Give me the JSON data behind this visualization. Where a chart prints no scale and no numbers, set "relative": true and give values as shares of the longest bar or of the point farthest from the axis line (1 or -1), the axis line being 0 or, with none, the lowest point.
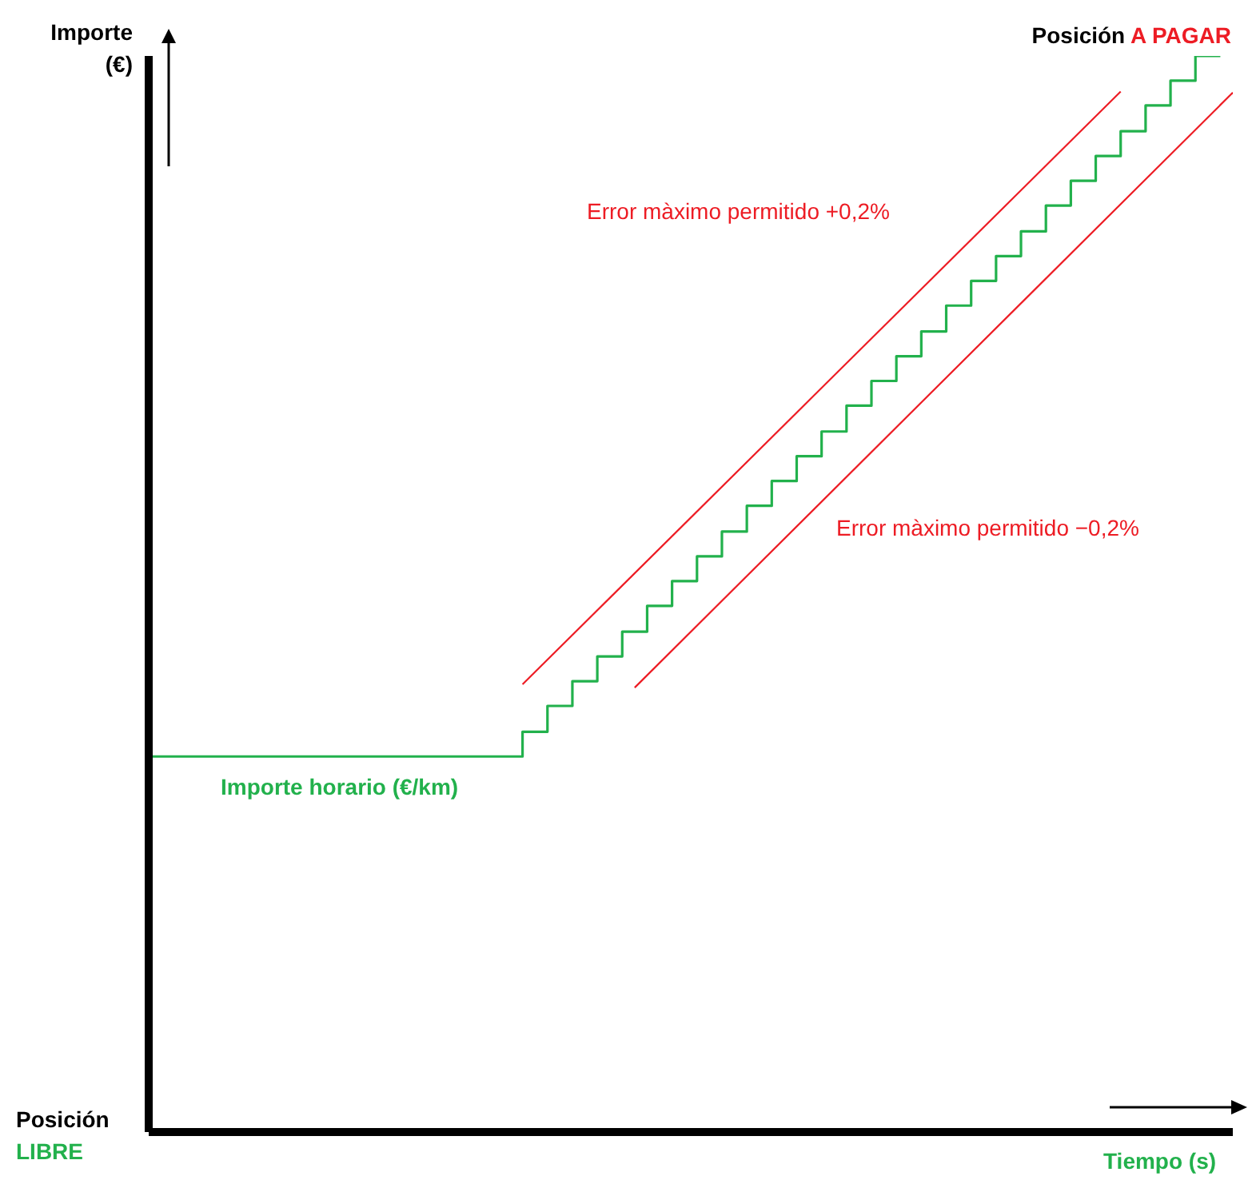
{
  "chart_data": {
    "type": "line",
    "relative": true,
    "ylabel": "Importe (€)",
    "xlabel": "Tiempo (s)",
    "categories": [
      null,
      null,
      null,
      null,
      null,
      null,
      null,
      null,
      null,
      null,
      null,
      null,
      null,
      null,
      null,
      null,
      null,
      null,
      null,
      null,
      null,
      null,
      null,
      null,
      null,
      null,
      null,
      null,
      null,
      null,
      null,
      null,
      null,
      null,
      null,
      null,
      null,
      null,
      null,
      null,
      null,
      null,
      null,
      null,
      null,
      null,
      null,
      null,
      null,
      null,
      null,
      null,
      null,
      null,
      null,
      null,
      null,
      null,
      null,
      null,
      null,
      null,
      null,
      null,
      null,
      null,
      null,
      null,
      null,
      null,
      null,
      null,
      null,
      null,
      null,
      null,
      null,
      null,
      null,
      null,
      null,
      null,
      null,
      null,
      null,
      null,
      null,
      null
    ],
    "series": [
      {
        "type": "step",
        "color": "#22b14c",
        "values": [
          0.349,
          0.349,
          0.349,
          0.349,
          0.349,
          0.349,
          0.349,
          0.349,
          0.349,
          0.349,
          0.349,
          0.349,
          0.349,
          0.349,
          0.349,
          0.349,
          0.349,
          0.349,
          0.349,
          0.349,
          0.349,
          0.349,
          0.349,
          0.349,
          0.349,
          0.349,
          0.349,
          0.349,
          0.349,
          0.349,
          0.372,
          0.372,
          0.396,
          0.396,
          0.419,
          0.419,
          0.442,
          0.442,
          0.465,
          0.465,
          0.489,
          0.489,
          0.512,
          0.512,
          0.535,
          0.535,
          0.558,
          0.558,
          0.582,
          0.582,
          0.605,
          0.605,
          0.628,
          0.628,
          0.651,
          0.651,
          0.675,
          0.675,
          0.698,
          0.698,
          0.721,
          0.721,
          0.744,
          0.744,
          0.768,
          0.768,
          0.791,
          0.791,
          0.814,
          0.814,
          0.837,
          0.837,
          0.861,
          0.861,
          0.884,
          0.884,
          0.907,
          0.907,
          0.93,
          0.93,
          0.954,
          0.954,
          0.977,
          0.977,
          1,
          1,
          1,
          null
        ]
      },
      {
        "type": "line",
        "color": "#ed1c24",
        "values": [
          null,
          null,
          null,
          null,
          null,
          null,
          null,
          null,
          null,
          null,
          null,
          null,
          null,
          null,
          null,
          null,
          null,
          null,
          null,
          null,
          null,
          null,
          null,
          null,
          null,
          null,
          null,
          null,
          null,
          null,
          0.416,
          null,
          null,
          null,
          null,
          null,
          null,
          null,
          null,
          null,
          null,
          null,
          null,
          null,
          null,
          null,
          null,
          null,
          null,
          null,
          null,
          null,
          null,
          null,
          null,
          null,
          null,
          null,
          null,
          null,
          null,
          null,
          null,
          null,
          null,
          null,
          null,
          null,
          null,
          null,
          null,
          null,
          null,
          null,
          null,
          null,
          null,
          null,
          0.967,
          null,
          null,
          null,
          null,
          null,
          null,
          null,
          null,
          null
        ]
      },
      {
        "type": "line",
        "color": "#ed1c24",
        "values": [
          null,
          null,
          null,
          null,
          null,
          null,
          null,
          null,
          null,
          null,
          null,
          null,
          null,
          null,
          null,
          null,
          null,
          null,
          null,
          null,
          null,
          null,
          null,
          null,
          null,
          null,
          null,
          null,
          null,
          null,
          null,
          null,
          null,
          null,
          null,
          null,
          null,
          null,
          null,
          0.413,
          null,
          null,
          null,
          null,
          null,
          null,
          null,
          null,
          null,
          null,
          null,
          null,
          null,
          null,
          null,
          null,
          null,
          null,
          null,
          null,
          null,
          null,
          null,
          null,
          null,
          null,
          null,
          null,
          null,
          null,
          null,
          null,
          null,
          null,
          null,
          null,
          null,
          null,
          null,
          null,
          null,
          null,
          null,
          null,
          null,
          null,
          null,
          0.966
        ]
      }
    ],
    "annotations": [
      "Importe horario (€/km)",
      "Error màximo permitido +0,2%",
      "Error màximo permitido −0,2%",
      "Posición A PAGAR",
      "Posición LIBRE"
    ]
  }
}
